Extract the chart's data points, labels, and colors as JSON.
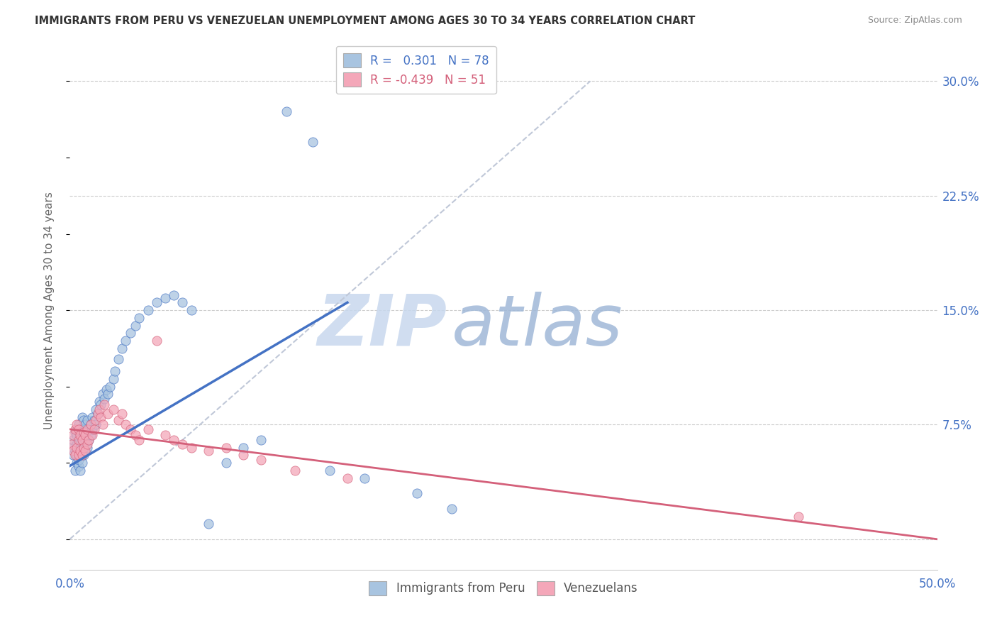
{
  "title": "IMMIGRANTS FROM PERU VS VENEZUELAN UNEMPLOYMENT AMONG AGES 30 TO 34 YEARS CORRELATION CHART",
  "source": "Source: ZipAtlas.com",
  "ylabel": "Unemployment Among Ages 30 to 34 years",
  "xlim": [
    0.0,
    0.5
  ],
  "ylim": [
    -0.02,
    0.32
  ],
  "x_tick_positions": [
    0.0,
    0.5
  ],
  "x_tick_labels": [
    "0.0%",
    "50.0%"
  ],
  "y_ticks_right": [
    0.0,
    0.075,
    0.15,
    0.225,
    0.3
  ],
  "y_tick_labels_right": [
    "",
    "7.5%",
    "15.0%",
    "22.5%",
    "30.0%"
  ],
  "peru_color": "#a8c4e0",
  "peru_line_color": "#4472c4",
  "venezuela_color": "#f4a7b9",
  "venezuela_line_color": "#d4607a",
  "diagonal_color": "#c0c8d8",
  "legend_R_peru": "0.301",
  "legend_N_peru": "78",
  "legend_R_venezuela": "-0.439",
  "legend_N_venezuela": "51",
  "legend_label_peru": "Immigrants from Peru",
  "legend_label_venezuela": "Venezuelans",
  "watermark_zip": "ZIP",
  "watermark_atlas": "atlas",
  "peru_scatter_x": [
    0.001,
    0.002,
    0.002,
    0.003,
    0.003,
    0.003,
    0.004,
    0.004,
    0.004,
    0.004,
    0.004,
    0.005,
    0.005,
    0.005,
    0.005,
    0.005,
    0.005,
    0.006,
    0.006,
    0.006,
    0.006,
    0.006,
    0.007,
    0.007,
    0.007,
    0.007,
    0.007,
    0.008,
    0.008,
    0.008,
    0.008,
    0.009,
    0.009,
    0.009,
    0.01,
    0.01,
    0.01,
    0.011,
    0.011,
    0.012,
    0.012,
    0.013,
    0.013,
    0.014,
    0.015,
    0.015,
    0.016,
    0.017,
    0.018,
    0.019,
    0.02,
    0.021,
    0.022,
    0.023,
    0.025,
    0.026,
    0.028,
    0.03,
    0.032,
    0.035,
    0.038,
    0.04,
    0.045,
    0.05,
    0.055,
    0.06,
    0.065,
    0.07,
    0.08,
    0.09,
    0.1,
    0.11,
    0.125,
    0.14,
    0.15,
    0.17,
    0.2,
    0.22
  ],
  "peru_scatter_y": [
    0.06,
    0.055,
    0.065,
    0.045,
    0.058,
    0.07,
    0.05,
    0.055,
    0.062,
    0.068,
    0.072,
    0.048,
    0.052,
    0.058,
    0.063,
    0.07,
    0.075,
    0.045,
    0.055,
    0.06,
    0.065,
    0.072,
    0.05,
    0.058,
    0.065,
    0.072,
    0.08,
    0.055,
    0.062,
    0.07,
    0.078,
    0.058,
    0.065,
    0.075,
    0.06,
    0.068,
    0.078,
    0.065,
    0.072,
    0.068,
    0.075,
    0.072,
    0.08,
    0.078,
    0.075,
    0.085,
    0.082,
    0.09,
    0.088,
    0.095,
    0.092,
    0.098,
    0.095,
    0.1,
    0.105,
    0.11,
    0.118,
    0.125,
    0.13,
    0.135,
    0.14,
    0.145,
    0.15,
    0.155,
    0.158,
    0.16,
    0.155,
    0.15,
    0.01,
    0.05,
    0.06,
    0.065,
    0.28,
    0.26,
    0.045,
    0.04,
    0.03,
    0.02
  ],
  "venezuela_scatter_x": [
    0.001,
    0.002,
    0.002,
    0.003,
    0.003,
    0.004,
    0.004,
    0.005,
    0.005,
    0.005,
    0.006,
    0.006,
    0.007,
    0.007,
    0.008,
    0.008,
    0.009,
    0.009,
    0.01,
    0.01,
    0.011,
    0.012,
    0.013,
    0.014,
    0.015,
    0.016,
    0.017,
    0.018,
    0.019,
    0.02,
    0.022,
    0.025,
    0.028,
    0.03,
    0.032,
    0.035,
    0.038,
    0.04,
    0.045,
    0.05,
    0.055,
    0.06,
    0.065,
    0.07,
    0.08,
    0.09,
    0.1,
    0.11,
    0.13,
    0.16,
    0.42
  ],
  "venezuela_scatter_y": [
    0.062,
    0.058,
    0.068,
    0.055,
    0.072,
    0.06,
    0.075,
    0.055,
    0.065,
    0.072,
    0.058,
    0.068,
    0.055,
    0.065,
    0.06,
    0.07,
    0.058,
    0.068,
    0.062,
    0.072,
    0.065,
    0.075,
    0.068,
    0.072,
    0.078,
    0.082,
    0.085,
    0.08,
    0.075,
    0.088,
    0.082,
    0.085,
    0.078,
    0.082,
    0.075,
    0.072,
    0.068,
    0.065,
    0.072,
    0.13,
    0.068,
    0.065,
    0.062,
    0.06,
    0.058,
    0.06,
    0.055,
    0.052,
    0.045,
    0.04,
    0.015
  ],
  "peru_line_x": [
    0.0,
    0.16
  ],
  "peru_line_y": [
    0.048,
    0.155
  ],
  "venezuela_line_x": [
    0.0,
    0.5
  ],
  "venezuela_line_y": [
    0.072,
    0.0
  ],
  "diagonal_line_x": [
    0.0,
    0.3
  ],
  "diagonal_line_y": [
    0.0,
    0.3
  ]
}
